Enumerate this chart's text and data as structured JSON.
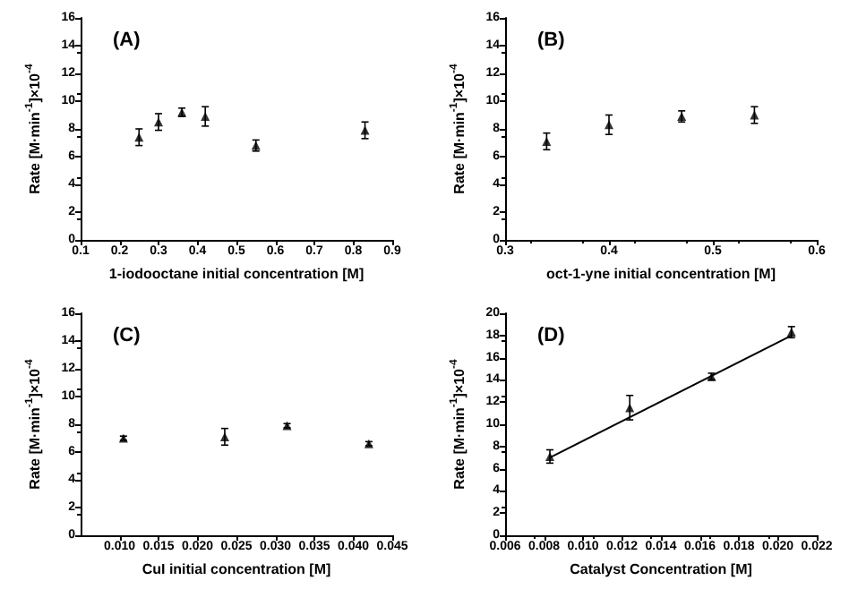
{
  "chart_data": [
    {
      "type": "scatter",
      "title": "(A)",
      "xlabel": "1-iodooctane initial concentration [M]",
      "ylabel": "Rate [M·min$^{-1}$]×10$^{-4}$",
      "x": [
        0.25,
        0.3,
        0.36,
        0.42,
        0.55,
        0.83
      ],
      "values": [
        7.4,
        8.5,
        9.2,
        8.9,
        6.8,
        7.9
      ],
      "errors": [
        0.6,
        0.6,
        0.3,
        0.7,
        0.4,
        0.6
      ],
      "color": "#000000",
      "marker": "triangle",
      "xlim": [
        0.1,
        0.9
      ],
      "xticks": [
        0.1,
        0.2,
        0.3,
        0.4,
        0.5,
        0.6,
        0.7,
        0.8,
        0.9
      ],
      "ylim": [
        0,
        16
      ],
      "yticks": [
        0,
        2,
        4,
        6,
        8,
        10,
        12,
        14,
        16
      ],
      "grid": false
    },
    {
      "type": "scatter",
      "title": "(B)",
      "xlabel": "oct-1-yne initial concentration [M]",
      "ylabel": "Rate [M·min$^{-1}$]×10$^{-4}$",
      "x": [
        0.34,
        0.4,
        0.47,
        0.54
      ],
      "values": [
        7.1,
        8.3,
        8.9,
        9.0
      ],
      "errors": [
        0.6,
        0.7,
        0.4,
        0.6
      ],
      "color": "#000000",
      "marker": "triangle",
      "xlim": [
        0.3,
        0.6
      ],
      "xticks": [
        0.3,
        0.4,
        0.5,
        0.6
      ],
      "ylim": [
        0,
        16
      ],
      "yticks": [
        0,
        2,
        4,
        6,
        8,
        10,
        12,
        14,
        16
      ],
      "grid": false
    },
    {
      "type": "scatter",
      "title": "(C)",
      "xlabel": "CuI initial concentration [M]",
      "ylabel": "Rate [M·min$^{-1}$]×10$^{-4}$",
      "x": [
        0.0105,
        0.0235,
        0.0315,
        0.042
      ],
      "values": [
        7.0,
        7.1,
        7.9,
        6.6
      ],
      "errors": [
        0.15,
        0.6,
        0.15,
        0.15
      ],
      "color": "#000000",
      "marker": "triangle",
      "xlim": [
        0.005,
        0.045
      ],
      "xticks": [
        {
          "value": 0.01,
          "label": "0.010"
        },
        {
          "value": 0.015,
          "label": "0.015"
        },
        {
          "value": 0.02,
          "label": "0.020"
        },
        {
          "value": 0.025,
          "label": "0.025"
        },
        {
          "value": 0.03,
          "label": "0.030"
        },
        {
          "value": 0.035,
          "label": "0.035"
        },
        {
          "value": 0.04,
          "label": "0.040"
        },
        {
          "value": 0.045,
          "label": "0.045"
        }
      ],
      "ylim": [
        0,
        16
      ],
      "yticks": [
        0,
        2,
        4,
        6,
        8,
        10,
        12,
        14,
        16
      ],
      "grid": false
    },
    {
      "type": "scatter",
      "title": "(D)",
      "xlabel": "Catalyst Concentration [M]",
      "ylabel": "Rate [M·min$^{-1}$]×10$^{-4}$",
      "series": [
        {
          "color": "#000000",
          "x": [
            0.0083,
            0.0124,
            0.0166,
            0.0207
          ],
          "values": [
            7.1,
            11.5,
            14.3,
            18.3
          ],
          "errors": [
            0.6,
            1.1,
            0.3,
            0.5
          ],
          "marker": "triangle"
        },
        {
          "type": "line",
          "color": "#000000",
          "x": [
            0.0083,
            0.0207
          ],
          "values": [
            7.0,
            18.0
          ],
          "marker": "none",
          "line_style": "solid"
        }
      ],
      "xlim": [
        0.006,
        0.022
      ],
      "xticks": [
        0.006,
        0.008,
        {
          "value": 0.01,
          "label": "0.010"
        },
        0.012,
        0.014,
        0.016,
        0.018,
        {
          "value": 0.02,
          "label": "0.020"
        },
        0.022
      ],
      "ylim": [
        0,
        20
      ],
      "yticks": [
        0,
        2,
        4,
        6,
        8,
        10,
        12,
        14,
        16,
        18,
        20
      ],
      "grid": false
    }
  ]
}
